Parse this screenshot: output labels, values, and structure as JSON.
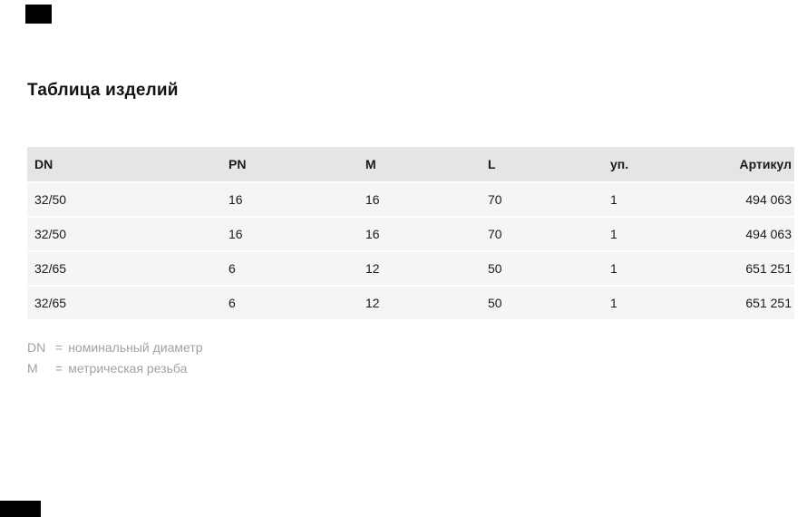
{
  "page": {
    "title": "Таблица изделий"
  },
  "table": {
    "columns": [
      "DN",
      "PN",
      "M",
      "L",
      "уп.",
      "Артикул"
    ],
    "rows": [
      [
        "32/50",
        "16",
        "16",
        "70",
        "1",
        "494 063"
      ],
      [
        "32/50",
        "16",
        "16",
        "70",
        "1",
        "494 063"
      ],
      [
        "32/65",
        "6",
        "12",
        "50",
        "1",
        "651 251"
      ],
      [
        "32/65",
        "6",
        "12",
        "50",
        "1",
        "651 251"
      ]
    ]
  },
  "legend": [
    {
      "abbr": "DN",
      "eq": "=",
      "definition": "номинальный диаметр"
    },
    {
      "abbr": "M",
      "eq": "=",
      "definition": "метрическая резьба"
    }
  ],
  "colors": {
    "page_bg": "#ffffff",
    "header_bg": "#e4e6e6",
    "row_bg": "#f4f5f5",
    "row_separator": "#ffffff",
    "text": "#1a1a1a",
    "legend_text": "#a2a2a2",
    "black_mark": "#000000"
  }
}
